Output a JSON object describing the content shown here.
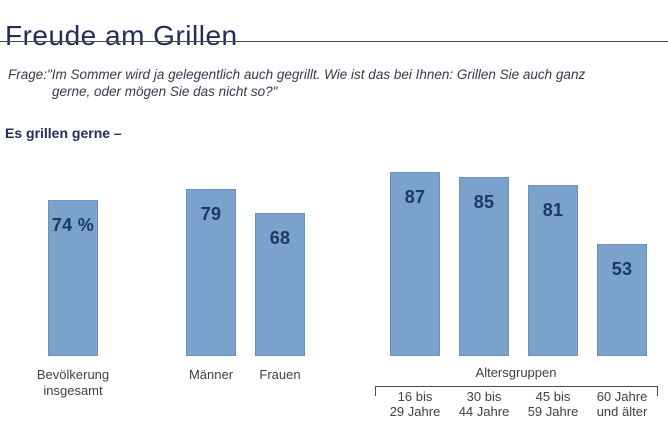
{
  "header": {
    "title": "Freude am Grillen",
    "question_lines": [
      "Frage:\"Im Sommer wird ja gelegentlich auch gegrillt. Wie ist das bei Ihnen: Grillen Sie auch ganz",
      "gerne, oder mögen Sie das nicht so?\""
    ],
    "subtitle": "Es grillen gerne –"
  },
  "colors": {
    "navy": "#222d5c",
    "value_navy": "#1e3866",
    "question_ink": "#383850",
    "bar_fill": "#7aa2cc",
    "bar_border": "#6b92bc",
    "label_gray": "#3f4148",
    "rule_gray": "#4b4b4b",
    "bg": "#ffffff"
  },
  "chart_data": {
    "type": "bar",
    "title": "Freude am Grillen",
    "subtitle": "Es grillen gerne –",
    "unit": "percent",
    "ylim": [
      0,
      100
    ],
    "grid": false,
    "legend": false,
    "categories": [
      "Bevölkerung insgesamt",
      "Männer",
      "Frauen",
      "16 bis 29 Jahre",
      "30 bis 44 Jahre",
      "45 bis 59 Jahre",
      "60 Jahre und älter"
    ],
    "values": [
      74,
      79,
      68,
      87,
      85,
      81,
      53
    ],
    "group_label": "Altersgruppen",
    "bars": [
      {
        "category_lines": [
          "Bevölkerung",
          "insgesamt"
        ],
        "value": 74,
        "value_label": "74 %",
        "group": null
      },
      {
        "category_lines": [
          "Männer"
        ],
        "value": 79,
        "value_label": "79",
        "group": null
      },
      {
        "category_lines": [
          "Frauen"
        ],
        "value": 68,
        "value_label": "68",
        "group": null
      },
      {
        "category_lines": [
          "16 bis",
          "29 Jahre"
        ],
        "value": 87,
        "value_label": "87",
        "group": "Altersgruppen"
      },
      {
        "category_lines": [
          "30 bis",
          "44 Jahre"
        ],
        "value": 85,
        "value_label": "85",
        "group": "Altersgruppen"
      },
      {
        "category_lines": [
          "45 bis",
          "59 Jahre"
        ],
        "value": 81,
        "value_label": "81",
        "group": "Altersgruppen"
      },
      {
        "category_lines": [
          "60 Jahre",
          "und älter"
        ],
        "value": 53,
        "value_label": "53",
        "group": "Altersgruppen"
      }
    ]
  }
}
